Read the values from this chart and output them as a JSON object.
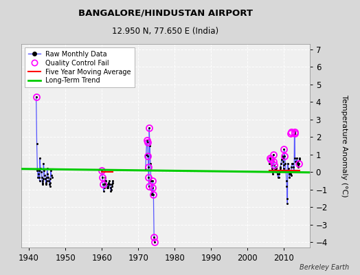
{
  "title": "BANGALORE/HINDUSTAN AIRPORT",
  "subtitle": "12.950 N, 77.650 E (India)",
  "ylabel": "Temperature Anomaly (°C)",
  "attribution": "Berkeley Earth",
  "xlim": [
    1938,
    2017
  ],
  "ylim": [
    -4.3,
    7.3
  ],
  "yticks": [
    -4,
    -3,
    -2,
    -1,
    0,
    1,
    2,
    3,
    4,
    5,
    6,
    7
  ],
  "xticks": [
    1940,
    1950,
    1960,
    1970,
    1980,
    1990,
    2000,
    2010
  ],
  "colors": {
    "raw_line": "#5555ff",
    "raw_dot": "#000000",
    "qc_circle": "#ff00ff",
    "five_year": "#ff0000",
    "long_term": "#00cc00",
    "bg": "#d8d8d8",
    "plot_bg": "#f0f0f0",
    "grid": "#ffffff"
  },
  "raw_segments": [
    {
      "x": [
        1942.0,
        1942.0,
        1943.0,
        1943.0,
        1944.0,
        1944.0,
        1945.0,
        1945.0,
        1946.0,
        1946.5
      ],
      "y": [
        4.3,
        -1.8,
        0.8,
        -0.4,
        0.5,
        -0.3,
        0.2,
        -0.4,
        0.1,
        -0.3
      ]
    },
    {
      "x": [
        1960.0,
        1960.0,
        1961.0,
        1961.0,
        1962.0,
        1962.0,
        1963.0
      ],
      "y": [
        0.1,
        -0.5,
        -0.3,
        -0.6,
        -0.5,
        -0.6,
        -0.5
      ]
    },
    {
      "x": [
        1972.0,
        1973.0,
        1973.0,
        1974.5
      ],
      "y": [
        0.15,
        2.5,
        -0.9,
        -4.0
      ]
    },
    {
      "x": [
        2006.0,
        2006.0,
        2007.0,
        2007.0,
        2008.0,
        2008.0,
        2009.0,
        2009.0,
        2010.0,
        2010.0,
        2011.0,
        2011.0,
        2012.0,
        2012.0,
        2013.0,
        2013.0,
        2014.0,
        2014.25
      ],
      "y": [
        0.5,
        -0.1,
        1.0,
        0.0,
        0.1,
        0.2,
        0.3,
        0.2,
        1.3,
        -1.8,
        0.5,
        -0.2,
        0.3,
        2.3,
        0.8,
        0.3,
        0.5,
        0.8
      ]
    }
  ],
  "raw_dots": {
    "x_1940s": [
      1942.0,
      1942.17,
      1942.33,
      1942.5,
      1942.67,
      1942.75,
      1942.83,
      1942.92,
      1943.0,
      1943.17,
      1943.33,
      1943.5,
      1943.67,
      1943.75,
      1943.83,
      1943.92,
      1944.0,
      1944.17,
      1944.33,
      1944.5,
      1944.67,
      1944.75,
      1944.83,
      1944.92,
      1945.0,
      1945.17,
      1945.33,
      1945.5,
      1945.67,
      1945.75,
      1945.83,
      1945.92,
      1946.0,
      1946.17,
      1946.33
    ],
    "y_1940s": [
      4.3,
      1.6,
      0.1,
      -0.3,
      -0.1,
      0.1,
      -0.3,
      -0.5,
      0.8,
      0.2,
      0.0,
      -0.3,
      -0.6,
      -0.7,
      -0.5,
      -0.4,
      0.5,
      0.1,
      -0.2,
      -0.4,
      -0.6,
      -0.7,
      -0.5,
      -0.3,
      0.2,
      -0.1,
      -0.3,
      -0.5,
      -0.7,
      -0.8,
      -0.6,
      -0.4,
      0.1,
      -0.2,
      -0.3
    ],
    "x_1960s": [
      1960.0,
      1960.17,
      1960.33,
      1960.5,
      1960.67,
      1960.75,
      1960.83,
      1960.92,
      1961.0,
      1961.17,
      1961.33,
      1961.5,
      1961.67,
      1961.75,
      1961.83,
      1961.92,
      1962.0,
      1962.17,
      1962.33,
      1962.5,
      1962.67,
      1962.75,
      1962.83,
      1962.92,
      1963.0
    ],
    "y_1960s": [
      0.1,
      -0.3,
      -0.7,
      -1.1,
      -0.9,
      -0.7,
      -0.6,
      -0.5,
      -0.3,
      -0.5,
      -0.7,
      -0.9,
      -0.9,
      -0.8,
      -0.7,
      -0.6,
      -0.5,
      -0.7,
      -0.9,
      -1.1,
      -1.0,
      -0.8,
      -0.7,
      -0.6,
      -0.5
    ],
    "x_1970s": [
      1972.0,
      1972.17,
      1972.33,
      1972.5,
      1972.67,
      1972.75,
      1972.83,
      1972.92,
      1973.0,
      1973.17,
      1973.33,
      1973.5,
      1973.67,
      1973.75,
      1973.83,
      1973.92,
      1974.0,
      1974.17,
      1974.33,
      1974.42
    ],
    "y_1970s": [
      0.15,
      1.0,
      1.8,
      1.7,
      0.9,
      0.3,
      -0.3,
      -0.8,
      2.5,
      1.5,
      0.5,
      -0.5,
      -1.2,
      -1.3,
      -1.1,
      -0.9,
      -0.5,
      -1.3,
      -3.7,
      -4.0
    ],
    "x_2000s": [
      2006.0,
      2006.17,
      2006.33,
      2006.5,
      2006.67,
      2006.75,
      2006.83,
      2006.92,
      2007.0,
      2007.17,
      2007.33,
      2007.5,
      2007.67,
      2007.75,
      2007.83,
      2007.92,
      2008.0,
      2008.17,
      2008.33,
      2008.5,
      2008.67,
      2008.75,
      2008.83,
      2008.92,
      2009.0,
      2009.17,
      2009.33,
      2009.5,
      2009.67,
      2009.75,
      2009.83,
      2009.92,
      2010.0,
      2010.17,
      2010.33,
      2010.5,
      2010.67,
      2010.75,
      2010.83,
      2010.92,
      2011.0,
      2011.17,
      2011.33,
      2011.5,
      2011.67,
      2011.75,
      2011.83,
      2011.92,
      2012.0,
      2012.17,
      2012.33,
      2012.5,
      2012.67,
      2012.75,
      2012.83,
      2012.92,
      2013.0,
      2013.17,
      2013.33,
      2013.5,
      2013.67,
      2013.75,
      2013.83,
      2013.92,
      2014.0,
      2014.17,
      2014.33
    ],
    "y_2000s": [
      0.5,
      0.8,
      0.7,
      0.4,
      0.2,
      0.1,
      0.0,
      -0.1,
      1.0,
      0.6,
      0.4,
      0.2,
      0.2,
      0.3,
      0.2,
      0.0,
      0.1,
      -0.1,
      -0.3,
      -0.3,
      -0.1,
      0.0,
      0.1,
      0.2,
      0.3,
      0.5,
      0.7,
      0.9,
      0.8,
      0.6,
      0.4,
      0.2,
      1.3,
      0.9,
      0.5,
      0.1,
      -0.5,
      -0.8,
      -1.5,
      -1.8,
      0.5,
      0.2,
      -0.1,
      -0.3,
      -0.1,
      0.0,
      -0.1,
      -0.2,
      0.3,
      0.5,
      0.5,
      0.3,
      0.1,
      0.0,
      2.2,
      2.3,
      0.8,
      0.6,
      0.6,
      0.8,
      0.6,
      0.5,
      0.4,
      0.3,
      0.5,
      0.7,
      0.8
    ]
  },
  "qc_x": [
    1942.0,
    1960.0,
    1960.17,
    1960.33,
    1972.33,
    1972.5,
    1972.67,
    1972.75,
    1972.83,
    1972.92,
    1973.0,
    1973.92,
    1974.0,
    1974.17,
    1974.33,
    1974.42,
    2006.17,
    2006.33,
    2007.0,
    2007.17,
    2007.33,
    2010.0,
    2010.17,
    2011.83,
    2011.92,
    2012.83,
    2012.92,
    2014.0
  ],
  "qc_y": [
    4.3,
    0.1,
    -0.3,
    -0.7,
    1.8,
    1.7,
    0.9,
    0.3,
    -0.3,
    -0.8,
    2.5,
    -0.9,
    -0.5,
    -1.3,
    -3.7,
    -4.0,
    0.8,
    0.7,
    1.0,
    0.6,
    0.4,
    1.3,
    0.9,
    2.2,
    2.3,
    2.2,
    2.3,
    0.5
  ],
  "long_trend_x": [
    1938,
    2017
  ],
  "long_trend_y": [
    0.18,
    -0.02
  ],
  "five_year_segments": [
    {
      "x": [
        1942.0,
        1946.5
      ],
      "y": [
        0.15,
        0.15
      ]
    },
    {
      "x": [
        1960.0,
        1963.0
      ],
      "y": [
        0.0,
        0.0
      ]
    },
    {
      "x": [
        1972.0,
        1974.5
      ],
      "y": [
        0.1,
        0.1
      ]
    },
    {
      "x": [
        2006.0,
        2014.33
      ],
      "y": [
        0.1,
        0.1
      ]
    }
  ]
}
